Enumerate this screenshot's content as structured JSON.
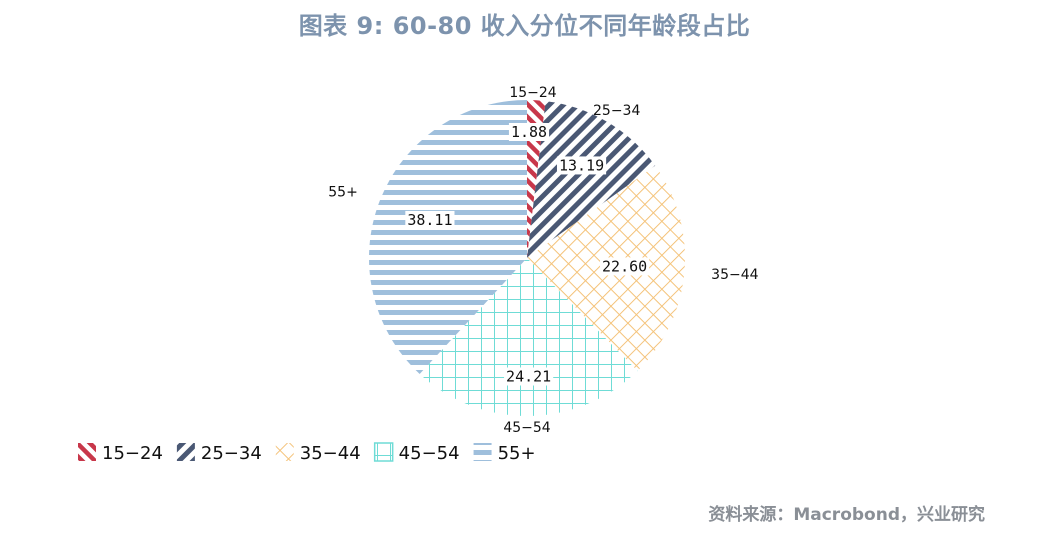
{
  "title": "图表 9:  60-80 收入分位不同年龄段占比",
  "source": "资料来源：Macrobond，兴业研究",
  "chart_data": {
    "type": "pie",
    "categories": [
      "15-24",
      "25-34",
      "35-44",
      "45-54",
      "55+"
    ],
    "values": [
      1.88,
      13.19,
      22.6,
      24.21,
      38.11
    ],
    "value_labels": [
      "1.88",
      "13.19",
      "22.60",
      "24.21",
      "38.11"
    ],
    "category_labels": [
      "15−24",
      "25−34",
      "35−44",
      "45−54",
      "55+"
    ],
    "legend": [
      "15−24",
      "25−34",
      "35−44",
      "45−54",
      "55+"
    ],
    "legend_position": "bottom-left",
    "colors": [
      "#c8374a",
      "#4a5874",
      "#f4c37a",
      "#6fdcd6",
      "#9fbfdc"
    ],
    "patterns": [
      "diagonal-stripes",
      "diagonal-stripes",
      "crosshatch-diagonal",
      "grid",
      "horizontal-stripes"
    ]
  }
}
